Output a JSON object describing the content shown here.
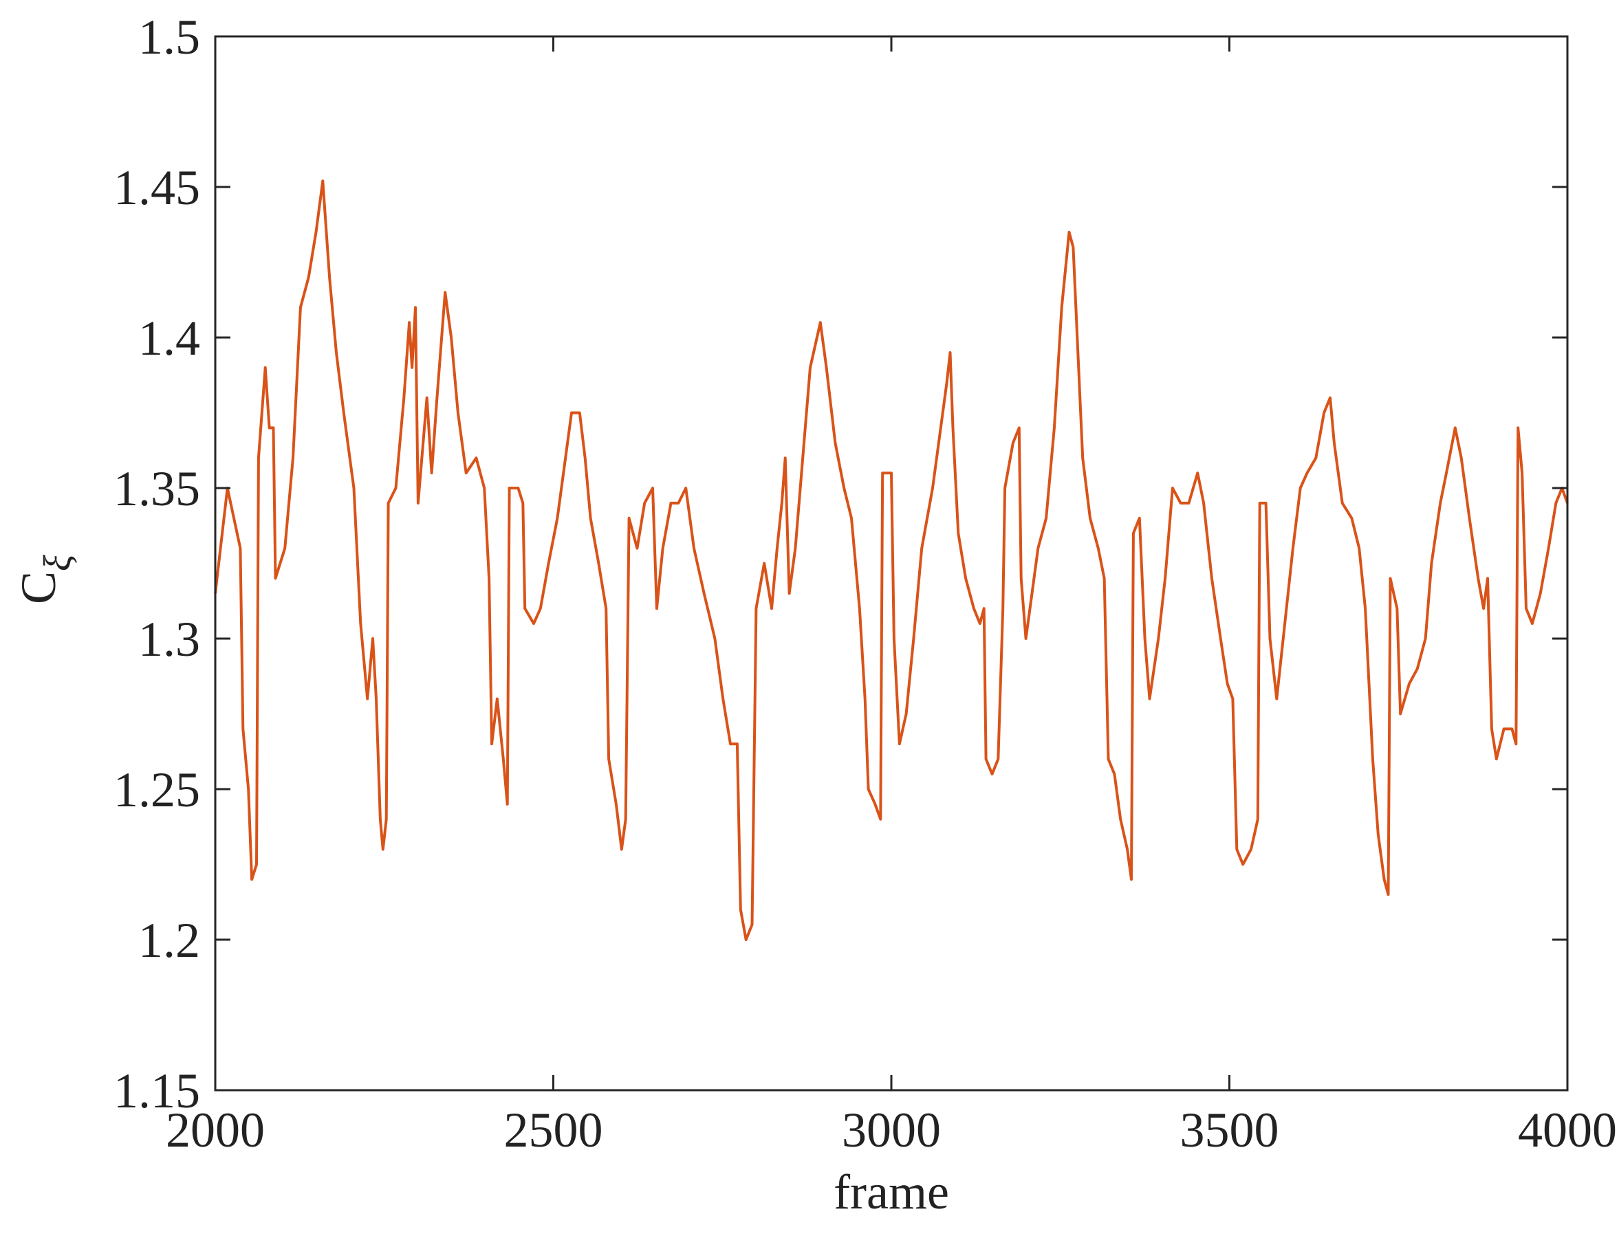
{
  "chart_data": {
    "type": "line",
    "xlabel": "frame",
    "ylabel": {
      "base": "C",
      "subscript": "ξ"
    },
    "xlim": [
      2000,
      4000
    ],
    "xticks": [
      2000,
      2500,
      3000,
      3500,
      4000
    ],
    "ylim": [
      1.15,
      1.5
    ],
    "yticks": [
      1.15,
      1.2,
      1.25,
      1.3,
      1.35,
      1.4,
      1.45,
      1.5
    ],
    "grid": false,
    "series": [
      {
        "color": "#d95319",
        "x": [
          2000,
          2018,
          2037,
          2041,
          2049,
          2054,
          2061,
          2064,
          2074,
          2080,
          2086,
          2089,
          2103,
          2115,
          2126,
          2138,
          2149,
          2159,
          2169,
          2179,
          2190,
          2199,
          2205,
          2215,
          2225,
          2233,
          2238,
          2244,
          2248,
          2253,
          2256,
          2267,
          2279,
          2287,
          2291,
          2296,
          2300,
          2313,
          2320,
          2328,
          2340,
          2349,
          2359,
          2371,
          2386,
          2398,
          2405,
          2409,
          2417,
          2426,
          2432,
          2435,
          2448,
          2455,
          2458,
          2471,
          2481,
          2493,
          2506,
          2518,
          2527,
          2539,
          2547,
          2555,
          2567,
          2578,
          2582,
          2593,
          2601,
          2607,
          2612,
          2624,
          2635,
          2647,
          2653,
          2662,
          2674,
          2685,
          2696,
          2708,
          2723,
          2739,
          2751,
          2762,
          2772,
          2777,
          2785,
          2794,
          2800,
          2812,
          2823,
          2831,
          2838,
          2843,
          2849,
          2858,
          2869,
          2880,
          2895,
          2904,
          2917,
          2930,
          2941,
          2953,
          2961,
          2966,
          2976,
          2984,
          2987,
          3000,
          3004,
          3012,
          3022,
          3033,
          3045,
          3061,
          3073,
          3082,
          3087,
          3091,
          3099,
          3110,
          3122,
          3131,
          3137,
          3140,
          3149,
          3158,
          3165,
          3168,
          3180,
          3189,
          3192,
          3199,
          3208,
          3217,
          3229,
          3241,
          3252,
          3263,
          3269,
          3275,
          3283,
          3294,
          3306,
          3315,
          3321,
          3330,
          3339,
          3349,
          3355,
          3358,
          3367,
          3375,
          3382,
          3395,
          3405,
          3416,
          3428,
          3440,
          3453,
          3462,
          3474,
          3487,
          3497,
          3505,
          3511,
          3520,
          3532,
          3542,
          3545,
          3554,
          3560,
          3570,
          3582,
          3594,
          3605,
          3615,
          3628,
          3640,
          3649,
          3655,
          3667,
          3681,
          3692,
          3701,
          3712,
          3720,
          3729,
          3735,
          3738,
          3748,
          3753,
          3766,
          3778,
          3790,
          3799,
          3812,
          3821,
          3834,
          3843,
          3855,
          3868,
          3876,
          3882,
          3888,
          3895,
          3906,
          3918,
          3924,
          3927,
          3933,
          3939,
          3948,
          3960,
          3972,
          3983,
          3992,
          4000
        ],
        "values": [
          1.315,
          1.35,
          1.33,
          1.27,
          1.25,
          1.22,
          1.225,
          1.36,
          1.39,
          1.37,
          1.37,
          1.32,
          1.33,
          1.36,
          1.41,
          1.42,
          1.435,
          1.452,
          1.42,
          1.395,
          1.375,
          1.36,
          1.35,
          1.305,
          1.28,
          1.3,
          1.28,
          1.24,
          1.23,
          1.24,
          1.345,
          1.35,
          1.38,
          1.405,
          1.39,
          1.41,
          1.345,
          1.38,
          1.355,
          1.38,
          1.415,
          1.4,
          1.375,
          1.355,
          1.36,
          1.35,
          1.32,
          1.265,
          1.28,
          1.26,
          1.245,
          1.35,
          1.35,
          1.345,
          1.31,
          1.305,
          1.31,
          1.325,
          1.34,
          1.36,
          1.375,
          1.375,
          1.36,
          1.34,
          1.325,
          1.31,
          1.26,
          1.245,
          1.23,
          1.24,
          1.34,
          1.33,
          1.345,
          1.35,
          1.31,
          1.33,
          1.345,
          1.345,
          1.35,
          1.33,
          1.315,
          1.3,
          1.28,
          1.265,
          1.265,
          1.21,
          1.2,
          1.205,
          1.31,
          1.325,
          1.31,
          1.33,
          1.345,
          1.36,
          1.315,
          1.33,
          1.36,
          1.39,
          1.405,
          1.39,
          1.365,
          1.35,
          1.34,
          1.31,
          1.28,
          1.25,
          1.245,
          1.24,
          1.355,
          1.355,
          1.3,
          1.265,
          1.275,
          1.3,
          1.33,
          1.35,
          1.37,
          1.385,
          1.395,
          1.37,
          1.335,
          1.32,
          1.31,
          1.305,
          1.31,
          1.26,
          1.255,
          1.26,
          1.31,
          1.35,
          1.365,
          1.37,
          1.32,
          1.3,
          1.315,
          1.33,
          1.34,
          1.37,
          1.41,
          1.435,
          1.43,
          1.4,
          1.36,
          1.34,
          1.33,
          1.32,
          1.26,
          1.255,
          1.24,
          1.23,
          1.22,
          1.335,
          1.34,
          1.3,
          1.28,
          1.3,
          1.32,
          1.35,
          1.345,
          1.345,
          1.355,
          1.345,
          1.32,
          1.3,
          1.285,
          1.28,
          1.23,
          1.225,
          1.23,
          1.24,
          1.345,
          1.345,
          1.3,
          1.28,
          1.305,
          1.33,
          1.35,
          1.355,
          1.36,
          1.375,
          1.38,
          1.365,
          1.345,
          1.34,
          1.33,
          1.31,
          1.26,
          1.235,
          1.22,
          1.215,
          1.32,
          1.31,
          1.275,
          1.285,
          1.29,
          1.3,
          1.325,
          1.345,
          1.355,
          1.37,
          1.36,
          1.34,
          1.32,
          1.31,
          1.32,
          1.27,
          1.26,
          1.27,
          1.27,
          1.265,
          1.37,
          1.355,
          1.31,
          1.305,
          1.315,
          1.33,
          1.345,
          1.35,
          1.345
        ]
      }
    ]
  }
}
